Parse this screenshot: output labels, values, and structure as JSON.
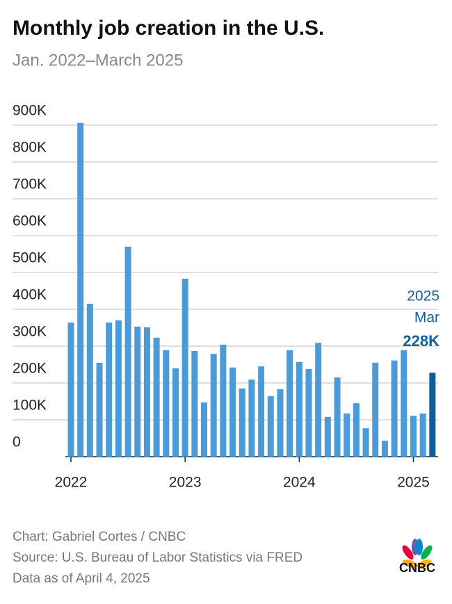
{
  "chart_data": {
    "type": "bar",
    "title": "Monthly job creation in the U.S.",
    "subtitle": "Jan. 2022–March 2025",
    "categories": [
      "2022",
      null,
      null,
      null,
      null,
      null,
      null,
      null,
      null,
      null,
      null,
      null,
      "2023",
      null,
      null,
      null,
      null,
      null,
      null,
      null,
      null,
      null,
      null,
      null,
      "2024",
      null,
      null,
      null,
      null,
      null,
      null,
      null,
      null,
      null,
      null,
      null,
      "2025",
      null,
      null
    ],
    "values": [
      364000,
      906000,
      415000,
      255000,
      364000,
      370000,
      570000,
      353000,
      351000,
      323000,
      289000,
      240000,
      483000,
      287000,
      147000,
      279000,
      304000,
      242000,
      185000,
      209000,
      245000,
      164000,
      183000,
      289000,
      257000,
      238000,
      309000,
      108000,
      215000,
      117000,
      145000,
      77000,
      255000,
      43000,
      261000,
      289000,
      111000,
      117000,
      228000
    ],
    "value_labels": [
      null,
      null,
      null,
      null,
      null,
      null,
      null,
      null,
      null,
      null,
      null,
      null,
      null,
      null,
      null,
      null,
      null,
      null,
      null,
      null,
      null,
      null,
      null,
      null,
      null,
      null,
      null,
      null,
      null,
      null,
      null,
      null,
      null,
      null,
      null,
      null,
      null,
      null,
      "228K"
    ],
    "annotation": [
      "2025",
      "Mar"
    ],
    "color": "#4a9bd8",
    "highlight_color": "#0f5e9c",
    "ylim": [
      0,
      900000
    ],
    "yticks": [
      0,
      {
        "value": 100000,
        "label": "100K"
      },
      {
        "value": 200000,
        "label": "200K"
      },
      {
        "value": 300000,
        "label": "300K"
      },
      {
        "value": 400000,
        "label": "400K"
      },
      {
        "value": 500000,
        "label": "500K"
      },
      {
        "value": 600000,
        "label": "600K"
      },
      {
        "value": 700000,
        "label": "700K"
      },
      {
        "value": 800000,
        "label": "800K"
      },
      {
        "value": 900000,
        "label": "900K"
      }
    ],
    "grid": true
  },
  "footer": [
    "Chart: Gabriel Cortes / CNBC",
    "Source: U.S. Bureau of Labor Statistics via FRED",
    "Data as of April 4, 2025"
  ],
  "logo": "CNBC"
}
